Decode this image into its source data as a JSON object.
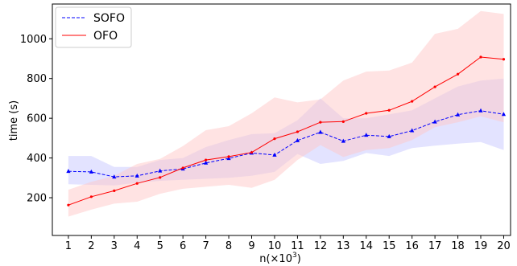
{
  "chart_data": {
    "type": "line",
    "xlabel": "n(×10³)",
    "xlabel_base": "n(×10",
    "xlabel_exp": "3",
    "xlabel_close": ")",
    "ylabel": "time (s)",
    "x": [
      1,
      2,
      3,
      4,
      5,
      6,
      7,
      8,
      9,
      10,
      11,
      12,
      13,
      14,
      15,
      16,
      17,
      18,
      19,
      20
    ],
    "xlim": [
      0.3,
      20.3
    ],
    "ylim": [
      10,
      1175
    ],
    "yticks": [
      200,
      400,
      600,
      800,
      1000
    ],
    "grid": false,
    "legend_position": "top-left",
    "series": [
      {
        "name": "SOFO",
        "color": "#0000ff",
        "line_style": "dashed",
        "marker": "triangle",
        "band_color": "#c8c8ff",
        "values": [
          333,
          330,
          305,
          310,
          335,
          345,
          375,
          398,
          425,
          415,
          488,
          530,
          485,
          515,
          508,
          538,
          582,
          618,
          638,
          620
        ],
        "lower": [
          268,
          265,
          262,
          275,
          285,
          290,
          295,
          300,
          310,
          330,
          420,
          370,
          385,
          425,
          410,
          450,
          462,
          472,
          480,
          440
        ],
        "upper": [
          410,
          410,
          355,
          355,
          390,
          400,
          455,
          490,
          520,
          525,
          590,
          700,
          600,
          600,
          620,
          640,
          700,
          760,
          790,
          800
        ]
      },
      {
        "name": "OFO",
        "color": "#ff0000",
        "line_style": "solid",
        "marker": "dot",
        "band_color": "#ffc8c8",
        "values": [
          163,
          205,
          235,
          272,
          302,
          350,
          390,
          407,
          428,
          497,
          532,
          580,
          583,
          625,
          640,
          685,
          758,
          822,
          908,
          897
        ],
        "lower": [
          105,
          140,
          170,
          180,
          220,
          245,
          255,
          265,
          250,
          290,
          390,
          465,
          405,
          440,
          450,
          490,
          555,
          580,
          610,
          580
        ],
        "upper": [
          240,
          280,
          310,
          370,
          395,
          460,
          540,
          560,
          625,
          705,
          680,
          695,
          790,
          835,
          840,
          880,
          1025,
          1050,
          1140,
          1125
        ]
      }
    ]
  }
}
